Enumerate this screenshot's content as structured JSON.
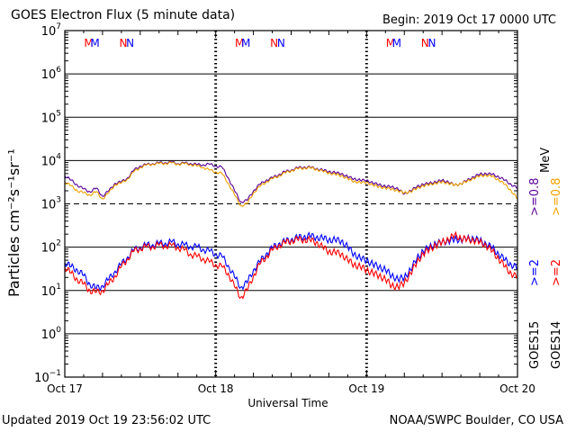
{
  "header": {
    "title": "GOES Electron Flux (5 minute data)",
    "begin": "Begin: 2019 Oct 17 0000 UTC"
  },
  "footer": {
    "updated": "Updated 2019 Oct 19 23:56:02 UTC",
    "credit": "NOAA/SWPC Boulder, CO USA"
  },
  "colors": {
    "goes15_2mev": "#0000ff",
    "goes14_2mev": "#ff0000",
    "goes15_08mev": "#5a0099",
    "goes14_08mev": "#f0a000",
    "marker_m": "#ff0000",
    "marker_n_red": "#ff0000",
    "marker_n_blue": "#0000ff"
  },
  "chart_data": {
    "type": "line",
    "title": "GOES Electron Flux (5 minute data)",
    "xlabel": "Universal Time",
    "ylabel": "Particles cm⁻²s⁻¹sr⁻¹",
    "y_scale": "log",
    "ylim": [
      0.1,
      10000000
    ],
    "y_ticks": [
      {
        "base": "10",
        "exp": "7"
      },
      {
        "base": "10",
        "exp": "6"
      },
      {
        "base": "10",
        "exp": "5"
      },
      {
        "base": "10",
        "exp": "4"
      },
      {
        "base": "10",
        "exp": "3"
      },
      {
        "base": "10",
        "exp": "2"
      },
      {
        "base": "10",
        "exp": "1"
      },
      {
        "base": "10",
        "exp": "0"
      },
      {
        "base": "10",
        "exp": "−1"
      }
    ],
    "x_ticks": [
      "Oct 17",
      "Oct 18",
      "Oct 19",
      "Oct 20"
    ],
    "x_hours_range": [
      0,
      72
    ],
    "threshold_dashed": 1000,
    "grid": true,
    "markers": [
      {
        "label": "M",
        "hour": 3.8,
        "color": "red"
      },
      {
        "label": "M",
        "hour": 4.8,
        "color": "blue"
      },
      {
        "label": "N",
        "hour": 9.3,
        "color": "red"
      },
      {
        "label": "N",
        "hour": 10.4,
        "color": "blue"
      },
      {
        "label": "M",
        "hour": 27.8,
        "color": "red"
      },
      {
        "label": "M",
        "hour": 28.8,
        "color": "blue"
      },
      {
        "label": "N",
        "hour": 33.3,
        "color": "red"
      },
      {
        "label": "N",
        "hour": 34.4,
        "color": "blue"
      },
      {
        "label": "M",
        "hour": 51.8,
        "color": "red"
      },
      {
        "label": "M",
        "hour": 52.8,
        "color": "blue"
      },
      {
        "label": "N",
        "hour": 57.3,
        "color": "red"
      },
      {
        "label": "N",
        "hour": 58.4,
        "color": "blue"
      }
    ],
    "legend_right": {
      "energy_a": ">=0.8  MeV",
      "energy_b": ">=2",
      "sat_a": "GOES15",
      "sat_b": "GOES14",
      "energy_a_prefix": ">=0.8",
      "mev": "MeV"
    },
    "series": [
      {
        "key": "goes15_08mev",
        "hours": [
          0,
          1,
          2,
          3,
          4,
          5,
          6,
          7,
          8,
          9,
          10,
          11,
          12,
          13,
          14,
          15,
          16,
          17,
          18,
          19,
          20,
          21,
          22,
          23,
          24,
          25,
          26,
          27,
          28,
          29,
          30,
          31,
          32,
          33,
          34,
          35,
          36,
          37,
          38,
          39,
          40,
          41,
          42,
          43,
          44,
          45,
          46,
          47,
          48,
          49,
          50,
          51,
          52,
          53,
          54,
          55,
          56,
          57,
          58,
          59,
          60,
          61,
          62,
          63,
          64,
          65,
          66,
          67,
          68,
          69,
          70,
          71,
          72
        ],
        "values": [
          4500,
          3500,
          2700,
          2200,
          1900,
          2300,
          1500,
          2000,
          3000,
          3200,
          4000,
          6000,
          7500,
          8000,
          8500,
          8800,
          9000,
          9200,
          8500,
          8700,
          8600,
          8000,
          8000,
          8200,
          7500,
          7000,
          4000,
          2000,
          1100,
          1200,
          2000,
          2800,
          3500,
          4000,
          4700,
          5500,
          6000,
          6800,
          7000,
          7000,
          6500,
          6000,
          5600,
          5200,
          5000,
          4200,
          3800,
          3500,
          3500,
          3000,
          2800,
          2500,
          2500,
          2200,
          1700,
          2000,
          2500,
          2800,
          3000,
          3200,
          3500,
          3200,
          2700,
          2900,
          3500,
          4200,
          4800,
          5000,
          4800,
          4200,
          3500,
          2800,
          2300
        ]
      },
      {
        "key": "goes14_08mev",
        "hours": [
          0,
          1,
          2,
          3,
          4,
          5,
          6,
          7,
          8,
          9,
          10,
          11,
          12,
          13,
          14,
          15,
          16,
          17,
          18,
          19,
          20,
          21,
          22,
          23,
          24,
          25,
          26,
          27,
          28,
          29,
          30,
          31,
          32,
          33,
          34,
          35,
          36,
          37,
          38,
          39,
          40,
          41,
          42,
          43,
          44,
          45,
          46,
          47,
          48,
          49,
          50,
          51,
          52,
          53,
          54,
          55,
          56,
          57,
          58,
          59,
          60,
          61,
          62,
          63,
          64,
          65,
          66,
          67,
          68,
          69,
          70,
          71,
          72
        ],
        "values": [
          3200,
          2600,
          2000,
          1800,
          1600,
          1900,
          1300,
          1800,
          2800,
          3000,
          3800,
          5500,
          7000,
          7800,
          8300,
          8500,
          8700,
          8800,
          8300,
          8400,
          8200,
          7500,
          7000,
          6000,
          5500,
          5000,
          3000,
          1600,
          900,
          1000,
          1800,
          2500,
          3200,
          3800,
          4400,
          5200,
          5800,
          6500,
          6700,
          6800,
          6300,
          5700,
          5200,
          4800,
          4500,
          3800,
          3300,
          3100,
          3100,
          2700,
          2500,
          2300,
          2200,
          2000,
          1800,
          1900,
          2300,
          2600,
          2800,
          3000,
          3200,
          3000,
          2700,
          2900,
          3300,
          3900,
          4400,
          4600,
          4300,
          3600,
          2800,
          2000,
          1300
        ]
      },
      {
        "key": "goes15_2mev",
        "hours": [
          0,
          1,
          2,
          3,
          4,
          5,
          6,
          7,
          8,
          9,
          10,
          11,
          12,
          13,
          14,
          15,
          16,
          17,
          18,
          19,
          20,
          21,
          22,
          23,
          24,
          25,
          26,
          27,
          28,
          29,
          30,
          31,
          32,
          33,
          34,
          35,
          36,
          37,
          38,
          39,
          40,
          41,
          42,
          43,
          44,
          45,
          46,
          47,
          48,
          49,
          50,
          51,
          52,
          53,
          54,
          55,
          56,
          57,
          58,
          59,
          60,
          61,
          62,
          63,
          64,
          65,
          66,
          67,
          68,
          69,
          70,
          71,
          72
        ],
        "values": [
          45,
          35,
          30,
          22,
          14,
          11,
          13,
          18,
          28,
          40,
          60,
          85,
          100,
          110,
          115,
          120,
          125,
          130,
          120,
          110,
          105,
          100,
          90,
          80,
          70,
          60,
          38,
          20,
          12,
          15,
          30,
          45,
          70,
          95,
          120,
          135,
          150,
          165,
          175,
          180,
          170,
          160,
          150,
          145,
          140,
          100,
          70,
          55,
          50,
          40,
          35,
          30,
          22,
          18,
          20,
          30,
          55,
          80,
          100,
          120,
          130,
          140,
          150,
          150,
          155,
          160,
          140,
          120,
          95,
          70,
          50,
          40,
          33
        ]
      },
      {
        "key": "goes14_2mev",
        "hours": [
          0,
          1,
          2,
          3,
          4,
          5,
          6,
          7,
          8,
          9,
          10,
          11,
          12,
          13,
          14,
          15,
          16,
          17,
          18,
          19,
          20,
          21,
          22,
          23,
          24,
          25,
          26,
          27,
          28,
          29,
          30,
          31,
          32,
          33,
          34,
          35,
          36,
          37,
          38,
          39,
          40,
          41,
          42,
          43,
          44,
          45,
          46,
          47,
          48,
          49,
          50,
          51,
          52,
          53,
          54,
          55,
          56,
          57,
          58,
          59,
          60,
          61,
          62,
          63,
          64,
          65,
          66,
          67,
          68,
          69,
          70,
          71,
          72
        ],
        "values": [
          35,
          25,
          18,
          14,
          10,
          9,
          10,
          14,
          22,
          35,
          55,
          80,
          95,
          100,
          105,
          110,
          110,
          108,
          100,
          85,
          70,
          60,
          55,
          45,
          40,
          35,
          25,
          12,
          7,
          10,
          22,
          40,
          60,
          85,
          110,
          125,
          140,
          150,
          150,
          145,
          130,
          100,
          80,
          75,
          70,
          50,
          40,
          35,
          30,
          25,
          22,
          18,
          13,
          12,
          15,
          25,
          45,
          70,
          90,
          110,
          130,
          150,
          190,
          160,
          150,
          145,
          130,
          110,
          80,
          55,
          35,
          25,
          20
        ]
      }
    ]
  }
}
